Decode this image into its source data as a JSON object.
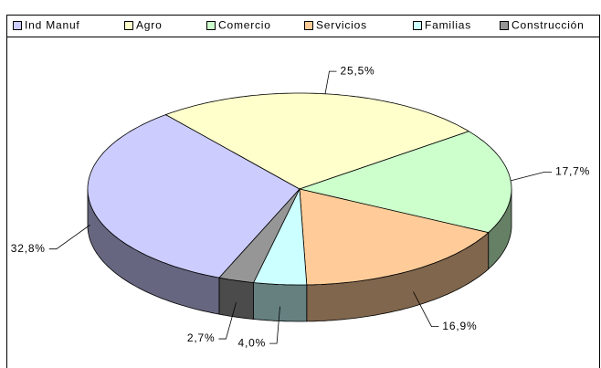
{
  "chart_data": {
    "type": "pie",
    "categories": [
      "Ind Manuf",
      "Agro",
      "Comercio",
      "Servicios",
      "Familias",
      "Construcción"
    ],
    "values": [
      32.8,
      25.5,
      17.7,
      16.9,
      4.0,
      2.7
    ],
    "value_labels": [
      "32,8%",
      "25,5%",
      "17,7%",
      "16,9%",
      "4,0%",
      "2,7%"
    ],
    "colors": [
      "#ccccff",
      "#ffffcc",
      "#ccffcc",
      "#ffcc99",
      "#ccffff",
      "#969696"
    ],
    "legend": "top"
  }
}
